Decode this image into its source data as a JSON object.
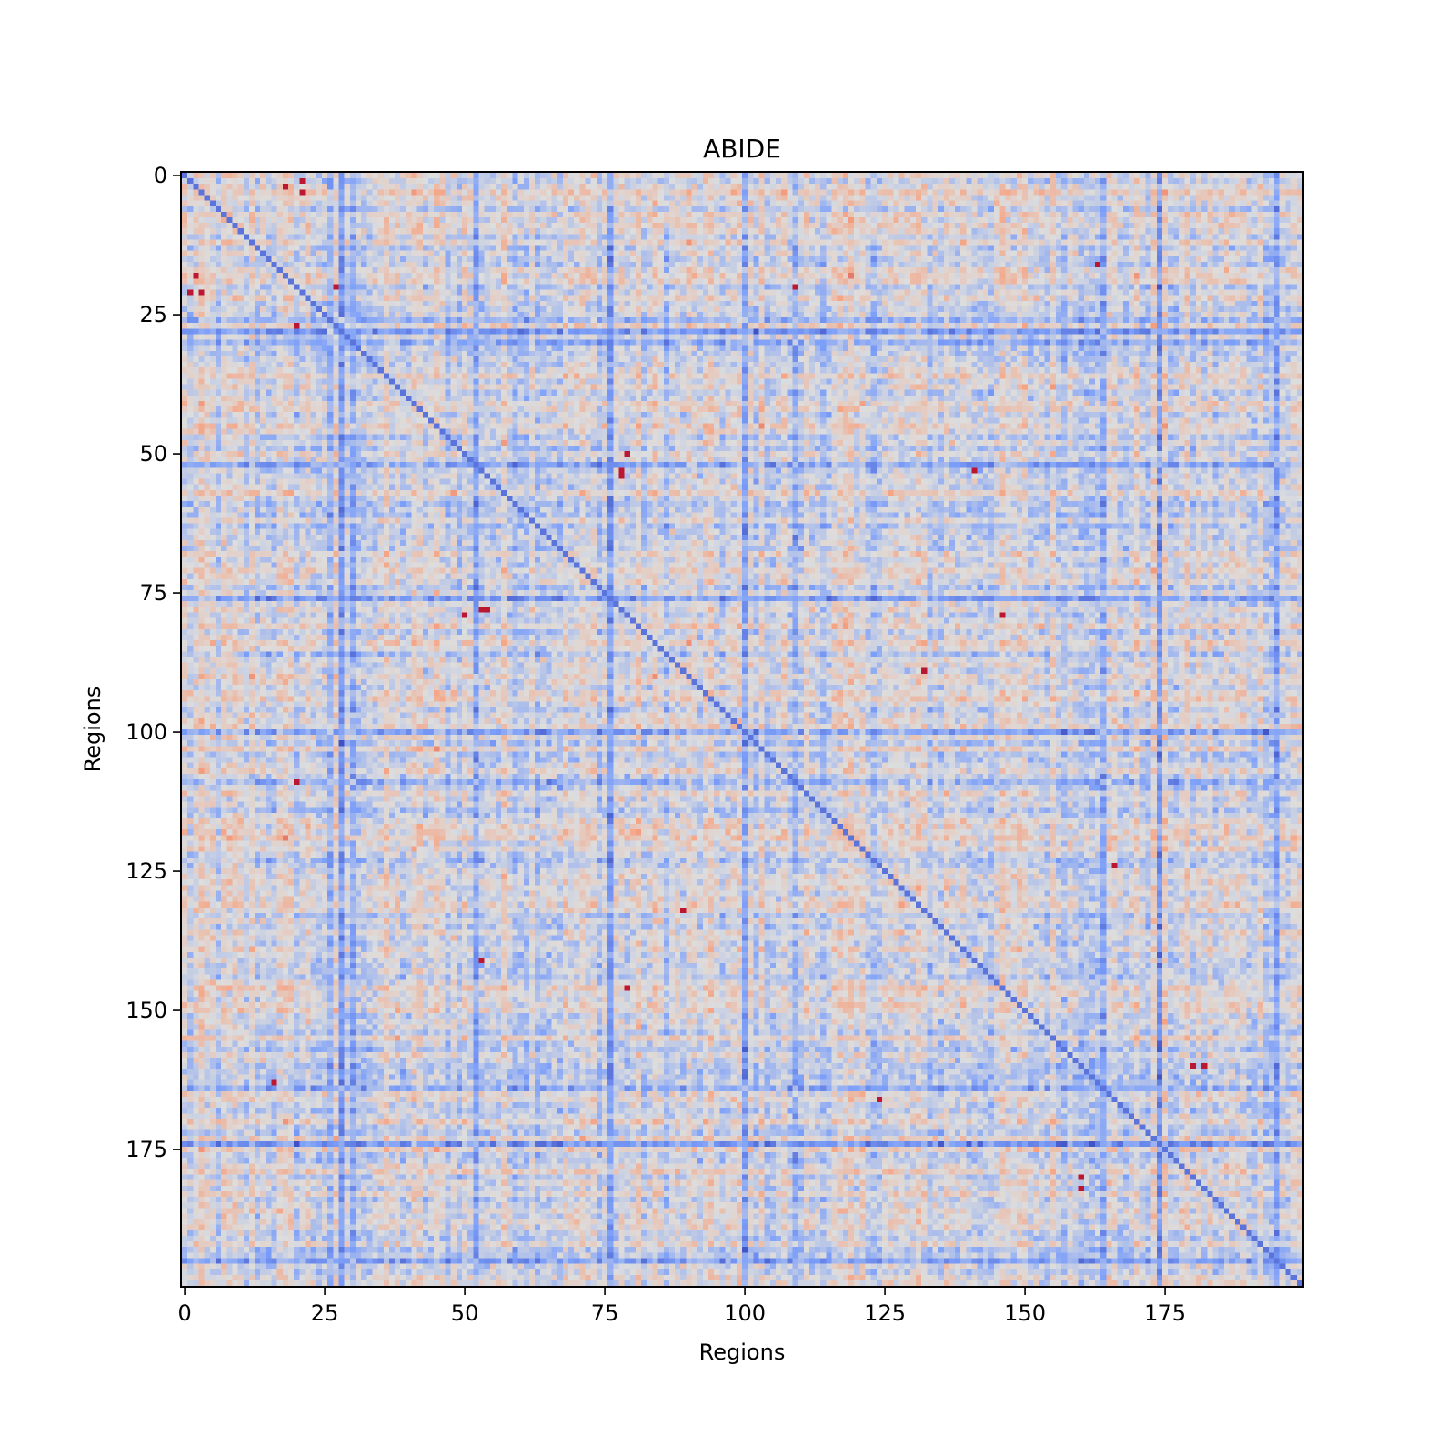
{
  "chart_data": {
    "type": "heatmap",
    "title": "ABIDE",
    "xlabel": "Regions",
    "ylabel": "Regions",
    "n_regions": 200,
    "xlim": [
      0,
      199
    ],
    "ylim": [
      0,
      199
    ],
    "y_axis_inverted": true,
    "xticks": [
      0,
      25,
      50,
      75,
      100,
      125,
      150,
      175
    ],
    "yticks": [
      0,
      25,
      50,
      75,
      100,
      125,
      150,
      175
    ],
    "colormap": "coolwarm",
    "colorbar": false,
    "grid": false,
    "diagonal_value": "low (blue)",
    "notable_blue_rows_cols": [
      26,
      28,
      30,
      52,
      76,
      100,
      109,
      164,
      174,
      195
    ],
    "notable_red_cells": [
      [
        3,
        21
      ],
      [
        21,
        1
      ],
      [
        18,
        2
      ],
      [
        27,
        20
      ],
      [
        50,
        79
      ],
      [
        53,
        78
      ],
      [
        78,
        54
      ],
      [
        89,
        132
      ],
      [
        109,
        20
      ],
      [
        124,
        166
      ],
      [
        132,
        89
      ],
      [
        141,
        53
      ],
      [
        160,
        182
      ],
      [
        163,
        16
      ],
      [
        166,
        124
      ],
      [
        180,
        160
      ],
      [
        16,
        163
      ],
      [
        79,
        146
      ]
    ],
    "colors": {
      "low": "#3b4cc0",
      "mid": "#dddddd",
      "high": "#b40426"
    }
  }
}
